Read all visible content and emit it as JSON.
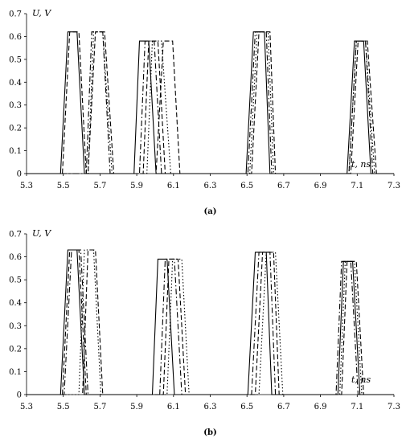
{
  "chart_data": [
    {
      "type": "line",
      "panel_label": "(a)",
      "ylabel": "U, V",
      "xlabel": "t, ns",
      "xlim": [
        5.3,
        7.3
      ],
      "ylim": [
        0,
        0.7
      ],
      "x_ticks": [
        "5.3",
        "5.5",
        "5.7",
        "5.9",
        "6.1",
        "6.3",
        "6.5",
        "6.7",
        "6.9",
        "7.1",
        "7.3"
      ],
      "y_ticks": [
        "0",
        "0.1",
        "0.2",
        "0.3",
        "0.4",
        "0.5",
        "0.6",
        "0.7"
      ],
      "series": [
        {
          "style": "solid",
          "pulses": [
            {
              "t0": 5.485,
              "t1": 5.525,
              "t2": 5.575,
              "t3": 5.615,
              "peak": 0.62
            },
            {
              "t0": 5.885,
              "t1": 5.915,
              "t2": 5.965,
              "t3": 6.005,
              "peak": 0.58
            },
            {
              "t0": 6.495,
              "t1": 6.535,
              "t2": 6.595,
              "t3": 6.625,
              "peak": 0.62
            },
            {
              "t0": 7.045,
              "t1": 7.085,
              "t2": 7.135,
              "t3": 7.175,
              "peak": 0.58
            }
          ]
        },
        {
          "style": "dashed",
          "pulses": [
            {
              "t0": 5.495,
              "t1": 5.535,
              "t2": 5.585,
              "t3": 5.625,
              "peak": 0.62
            },
            {
              "t0": 5.635,
              "t1": 5.675,
              "t2": 5.725,
              "t3": 5.775,
              "peak": 0.62
            },
            {
              "t0": 5.935,
              "t1": 5.965,
              "t2": 6.015,
              "t3": 6.055,
              "peak": 0.58
            },
            {
              "t0": 6.005,
              "t1": 6.045,
              "t2": 6.095,
              "t3": 6.135,
              "peak": 0.58
            },
            {
              "t0": 6.525,
              "t1": 6.565,
              "t2": 6.625,
              "t3": 6.655,
              "peak": 0.62
            },
            {
              "t0": 7.065,
              "t1": 7.105,
              "t2": 7.155,
              "t3": 7.205,
              "peak": 0.58
            }
          ]
        },
        {
          "style": "dotted",
          "pulses": [
            {
              "t0": 5.635,
              "t1": 5.665,
              "t2": 5.715,
              "t3": 5.765,
              "peak": 0.62
            },
            {
              "t0": 5.955,
              "t1": 5.985,
              "t2": 6.035,
              "t3": 6.085,
              "peak": 0.58
            },
            {
              "t0": 6.515,
              "t1": 6.555,
              "t2": 6.615,
              "t3": 6.645,
              "peak": 0.62
            },
            {
              "t0": 7.055,
              "t1": 7.095,
              "t2": 7.145,
              "t3": 7.195,
              "peak": 0.58
            }
          ]
        },
        {
          "style": "dashdot",
          "pulses": [
            {
              "t0": 5.625,
              "t1": 5.655,
              "t2": 5.715,
              "t3": 5.755,
              "peak": 0.62
            },
            {
              "t0": 5.915,
              "t1": 5.945,
              "t2": 5.995,
              "t3": 6.035,
              "peak": 0.58
            },
            {
              "t0": 6.505,
              "t1": 6.545,
              "t2": 6.605,
              "t3": 6.635,
              "peak": 0.62
            },
            {
              "t0": 7.055,
              "t1": 7.095,
              "t2": 7.145,
              "t3": 7.185,
              "peak": 0.58
            }
          ]
        }
      ]
    },
    {
      "type": "line",
      "panel_label": "(b)",
      "ylabel": "U, V",
      "xlabel": "t, ns",
      "xlim": [
        5.3,
        7.3
      ],
      "ylim": [
        0,
        0.7
      ],
      "x_ticks": [
        "5.3",
        "5.5",
        "5.7",
        "5.9",
        "6.1",
        "6.3",
        "6.5",
        "6.7",
        "6.9",
        "7.1",
        "7.3"
      ],
      "y_ticks": [
        "0",
        "0.1",
        "0.2",
        "0.3",
        "0.4",
        "0.5",
        "0.6",
        "0.7"
      ],
      "series": [
        {
          "style": "solid",
          "pulses": [
            {
              "t0": 5.485,
              "t1": 5.525,
              "t2": 5.575,
              "t3": 5.615,
              "peak": 0.63
            },
            {
              "t0": 5.985,
              "t1": 6.015,
              "t2": 6.065,
              "t3": 6.105,
              "peak": 0.59
            },
            {
              "t0": 6.505,
              "t1": 6.545,
              "t2": 6.605,
              "t3": 6.635,
              "peak": 0.62
            },
            {
              "t0": 6.995,
              "t1": 7.025,
              "t2": 7.075,
              "t3": 7.115,
              "peak": 0.58
            }
          ]
        },
        {
          "style": "dashed",
          "pulses": [
            {
              "t0": 5.495,
              "t1": 5.535,
              "t2": 5.585,
              "t3": 5.625,
              "peak": 0.63
            },
            {
              "t0": 5.605,
              "t1": 5.635,
              "t2": 5.675,
              "t3": 5.715,
              "peak": 0.63
            },
            {
              "t0": 6.045,
              "t1": 6.075,
              "t2": 6.125,
              "t3": 6.165,
              "peak": 0.59
            },
            {
              "t0": 6.545,
              "t1": 6.585,
              "t2": 6.645,
              "t3": 6.675,
              "peak": 0.62
            },
            {
              "t0": 7.015,
              "t1": 7.045,
              "t2": 7.095,
              "t3": 7.135,
              "peak": 0.58
            }
          ]
        },
        {
          "style": "dotted",
          "pulses": [
            {
              "t0": 5.585,
              "t1": 5.615,
              "t2": 5.665,
              "t3": 5.705,
              "peak": 0.63
            },
            {
              "t0": 6.065,
              "t1": 6.095,
              "t2": 6.145,
              "t3": 6.185,
              "peak": 0.59
            },
            {
              "t0": 6.565,
              "t1": 6.605,
              "t2": 6.655,
              "t3": 6.695,
              "peak": 0.62
            },
            {
              "t0": 7.005,
              "t1": 7.035,
              "t2": 7.085,
              "t3": 7.125,
              "peak": 0.58
            }
          ]
        },
        {
          "style": "dashdot",
          "pulses": [
            {
              "t0": 5.505,
              "t1": 5.545,
              "t2": 5.595,
              "t3": 5.635,
              "peak": 0.63
            },
            {
              "t0": 6.025,
              "t1": 6.055,
              "t2": 6.105,
              "t3": 6.145,
              "peak": 0.59
            },
            {
              "t0": 6.525,
              "t1": 6.565,
              "t2": 6.625,
              "t3": 6.655,
              "peak": 0.62
            },
            {
              "t0": 6.985,
              "t1": 7.015,
              "t2": 7.065,
              "t3": 7.105,
              "peak": 0.58
            }
          ]
        }
      ]
    }
  ]
}
